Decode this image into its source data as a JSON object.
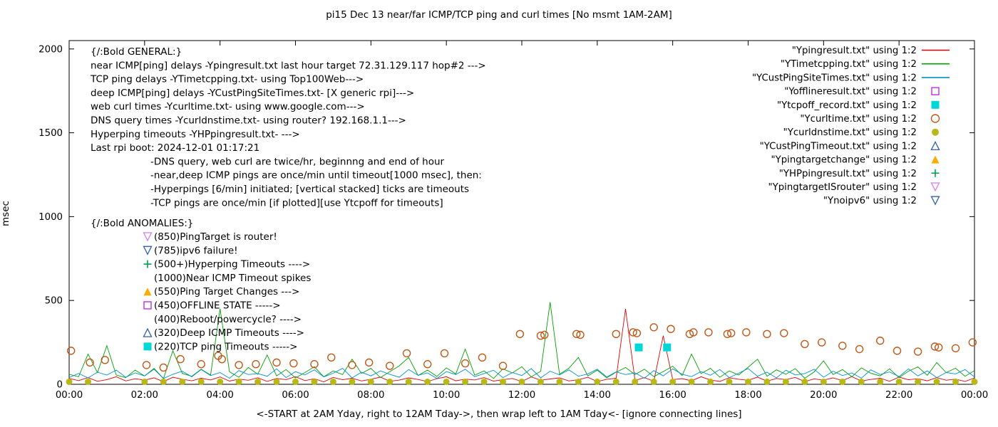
{
  "chart_data": {
    "type": "line",
    "title": "pi15 Dec 13  near/far ICMP/TCP ping and curl times [No msmt 1AM-2AM]",
    "xlabel": "<-START at 2AM Yday, right to 12AM Tday->, then wrap left to 1AM Tday<- [ignore connecting lines]",
    "ylabel": "msec",
    "xlim": [
      0,
      24
    ],
    "ylim": [
      0,
      2050
    ],
    "y_ticks": [
      0,
      500,
      1000,
      1500,
      2000
    ],
    "x_tick_hours": [
      0,
      2,
      4,
      6,
      8,
      10,
      12,
      14,
      16,
      18,
      20,
      22,
      24
    ],
    "x_tick_labels": [
      "00:00",
      "02:00",
      "04:00",
      "06:00",
      "08:00",
      "10:00",
      "12:00",
      "14:00",
      "16:00",
      "18:00",
      "20:00",
      "22:00",
      "00:00"
    ],
    "grid": false,
    "legend_position": "top-right",
    "series": [
      {
        "name": "Ypingresult.txt",
        "kind": "line",
        "color": "#dd0000",
        "x_step": 0.25,
        "values": [
          35,
          22,
          40,
          18,
          28,
          45,
          20,
          33,
          25,
          38,
          16,
          42,
          30,
          21,
          36,
          26,
          44,
          19,
          31,
          24,
          39,
          17,
          35,
          28,
          46,
          22,
          33,
          15,
          41,
          27,
          36,
          20,
          30,
          43,
          18,
          25,
          38,
          29,
          16,
          34,
          45,
          21,
          31,
          26,
          40,
          19,
          28,
          35,
          17,
          44,
          24,
          32,
          38,
          20,
          27,
          42,
          16,
          30,
          36,
          450,
          23,
          40,
          18,
          290,
          28,
          34,
          21,
          45,
          26,
          17,
          39,
          30,
          24,
          43,
          19,
          35,
          28,
          41,
          16,
          32,
          25,
          38,
          22,
          46,
          20,
          29,
          36,
          18,
          43,
          27,
          33,
          21,
          40,
          24,
          31,
          17,
          38
        ]
      },
      {
        "name": "YTimetcpping.txt",
        "kind": "line",
        "color": "#00a000",
        "x_step": 0.25,
        "values": [
          60,
          45,
          180,
          70,
          230,
          55,
          40,
          85,
          50,
          95,
          35,
          200,
          65,
          48,
          90,
          55,
          450,
          75,
          42,
          100,
          60,
          175,
          50,
          88,
          38,
          70,
          105,
          45,
          80,
          58,
          150,
          65,
          95,
          40,
          75,
          110,
          160,
          52,
          85,
          47,
          98,
          62,
          210,
          55,
          80,
          35,
          92,
          68,
          105,
          44,
          78,
          490,
          60,
          96,
          160,
          50,
          84,
          38,
          72,
          100,
          58,
          90,
          46,
          76,
          108,
          52,
          180,
          64,
          95,
          42,
          80,
          56,
          102,
          150,
          48,
          86,
          60,
          94,
          36,
          74,
          140,
          58,
          88,
          45,
          98,
          66,
          50,
          92,
          40,
          78,
          104,
          54,
          130,
          70,
          96,
          48,
          82
        ]
      },
      {
        "name": "YCustPingSiteTimes.txt",
        "kind": "line",
        "color": "#0090d0",
        "x_step": 0.25,
        "values": [
          40,
          65,
          38,
          72,
          55,
          85,
          42,
          68,
          50,
          90,
          35,
          60,
          78,
          45,
          88,
          52,
          70,
          36,
          82,
          58,
          64,
          48,
          92,
          40,
          75,
          56,
          86,
          44,
          66,
          95,
          38,
          72,
          50,
          80,
          60,
          42,
          88,
          54,
          68,
          35,
          76,
          58,
          90,
          46,
          64,
          84,
          40,
          70,
          52,
          94,
          38,
          78,
          56,
          86,
          48,
          62,
          90,
          44,
          74,
          58,
          68,
          36,
          82,
          50,
          92,
          60,
          46,
          76,
          54,
          88,
          40,
          66,
          94,
          48,
          72,
          38,
          84,
          56,
          64,
          90,
          42,
          78,
          52,
          68,
          36,
          86,
          58,
          74,
          46,
          92,
          50,
          80,
          40,
          70,
          62,
          88,
          44
        ]
      },
      {
        "name": "Ycurltime.txt",
        "kind": "scatter",
        "marker": "circle-open",
        "color": "#c05818",
        "points": [
          [
            0.05,
            200
          ],
          [
            0.55,
            130
          ],
          [
            0.95,
            145
          ],
          [
            2.05,
            115
          ],
          [
            2.5,
            100
          ],
          [
            2.95,
            150
          ],
          [
            3.5,
            120
          ],
          [
            3.95,
            170
          ],
          [
            4.05,
            150
          ],
          [
            4.5,
            115
          ],
          [
            4.95,
            120
          ],
          [
            5.5,
            130
          ],
          [
            5.95,
            125
          ],
          [
            6.5,
            120
          ],
          [
            6.95,
            160
          ],
          [
            7.5,
            115
          ],
          [
            7.95,
            130
          ],
          [
            8.5,
            110
          ],
          [
            8.95,
            185
          ],
          [
            9.5,
            120
          ],
          [
            9.95,
            185
          ],
          [
            10.5,
            125
          ],
          [
            10.95,
            160
          ],
          [
            11.5,
            110
          ],
          [
            11.95,
            300
          ],
          [
            12.5,
            290
          ],
          [
            12.6,
            295
          ],
          [
            13.45,
            300
          ],
          [
            13.55,
            295
          ],
          [
            14.5,
            300
          ],
          [
            14.95,
            310
          ],
          [
            15.05,
            305
          ],
          [
            15.5,
            340
          ],
          [
            15.95,
            330
          ],
          [
            16.45,
            300
          ],
          [
            16.55,
            310
          ],
          [
            16.95,
            310
          ],
          [
            17.45,
            300
          ],
          [
            17.55,
            305
          ],
          [
            17.95,
            310
          ],
          [
            18.5,
            300
          ],
          [
            18.95,
            305
          ],
          [
            19.5,
            240
          ],
          [
            19.95,
            250
          ],
          [
            20.5,
            230
          ],
          [
            20.95,
            210
          ],
          [
            21.5,
            260
          ],
          [
            21.95,
            200
          ],
          [
            22.5,
            195
          ],
          [
            22.95,
            225
          ],
          [
            23.05,
            220
          ],
          [
            23.5,
            215
          ],
          [
            23.95,
            250
          ]
        ]
      },
      {
        "name": "Ycurldnstime.txt",
        "kind": "scatter",
        "marker": "circle-filled",
        "color": "#b8b818",
        "y_const": 15,
        "xs": [
          0,
          0.5,
          2,
          2.5,
          3,
          3.5,
          4,
          4.5,
          5,
          5.5,
          6,
          6.5,
          7,
          7.5,
          8,
          8.5,
          9,
          9.5,
          10,
          10.5,
          11,
          11.5,
          12,
          12.5,
          13,
          13.5,
          14,
          14.5,
          15,
          15.5,
          16,
          16.5,
          17,
          17.5,
          18,
          18.5,
          19,
          19.5,
          20,
          20.5,
          21,
          21.5,
          22,
          22.5,
          23,
          23.5,
          24
        ]
      },
      {
        "name": "Ytcpoff_record.txt",
        "kind": "scatter",
        "marker": "square-filled",
        "color": "#00d8d8",
        "points": [
          [
            15.1,
            220
          ],
          [
            15.85,
            220
          ]
        ]
      }
    ]
  },
  "legend": [
    {
      "label": "\"Ypingresult.txt\" using 1:2",
      "sample": "line",
      "color": "#dd0000"
    },
    {
      "label": "\"YTimetcpping.txt\" using 1:2",
      "sample": "line",
      "color": "#00a000"
    },
    {
      "label": "\"YCustPingSiteTimes.txt\" using 1:2",
      "sample": "line",
      "color": "#0090d0"
    },
    {
      "label": "\"Yofflineresult.txt\" using 1:2",
      "sample": "square-open",
      "color": "#c030e0"
    },
    {
      "label": "\"Ytcpoff_record.txt\" using 1:2",
      "sample": "square-filled",
      "color": "#00d8d8"
    },
    {
      "label": "\"Ycurltime.txt\" using 1:2",
      "sample": "circle-open",
      "color": "#c05818"
    },
    {
      "label": "\"Ycurldnstime.txt\" using 1:2",
      "sample": "circle-filled",
      "color": "#b8b818"
    },
    {
      "label": "\"YCustPingTimeout.txt\" using 1:2",
      "sample": "triangle-up-open",
      "color": "#3060b0"
    },
    {
      "label": "\"Ypingtargetchange\" using 1:2",
      "sample": "triangle-up-filled",
      "color": "#ffaa00"
    },
    {
      "label": "\"YHPpingresult.txt\" using 1:2",
      "sample": "plus",
      "color": "#00a050"
    },
    {
      "label": "\"YpingtargetISrouter\" using 1:2",
      "sample": "triangle-down-open",
      "color": "#cc80e8"
    },
    {
      "label": "\"Ynoipv6\" using 1:2",
      "sample": "triangle-down-open",
      "color": "#3060b0"
    }
  ],
  "annotations": {
    "general": [
      {
        "text": "{/:Bold GENERAL:}",
        "indent": false
      },
      {
        "text": "near ICMP[ping] delays -Ypingresult.txt last hour target 72.31.129.117 hop#2 --->",
        "indent": false
      },
      {
        "text": "TCP ping delays -YTimetcpping.txt- using Top100Web--->",
        "indent": false
      },
      {
        "text": "deep ICMP[ping] delays -YCustPingSiteTimes.txt- [X generic rpi]--->",
        "indent": false
      },
      {
        "text": "web curl times -Ycurltime.txt- using www.google.com--->",
        "indent": false
      },
      {
        "text": "DNS query times -Ycurldnstime.txt- using router? 192.168.1.1--->",
        "indent": false
      },
      {
        "text": "Hyperping timeouts -YHPpingresult.txt- --->",
        "indent": false
      },
      {
        "text": "Last rpi boot: 2024-12-01 01:17:21",
        "indent": false
      },
      {
        "text": "-DNS query, web curl are twice/hr, beginnng and end of hour",
        "indent": true
      },
      {
        "text": "-near,deep ICMP pings are once/min until timeout[1000 msec], then:",
        "indent": true
      },
      {
        "text": "-Hyperpings [6/min] initiated; [vertical stacked] ticks are timeouts",
        "indent": true
      },
      {
        "text": "-TCP pings are once/min [if plotted][use Ytcpoff for timeouts]",
        "indent": true
      }
    ],
    "anomalies_header": "{/:Bold ANOMALIES:}",
    "anomalies": [
      {
        "marker": "triangle-down-open",
        "color": "#cc80e8",
        "text": "(850)PingTarget is router!"
      },
      {
        "marker": "triangle-down-open",
        "color": "#3060b0",
        "text": "(785)ipv6 failure!"
      },
      {
        "marker": "plus",
        "color": "#00a050",
        "text": "(500+)Hyperping Timeouts ---->"
      },
      {
        "marker": null,
        "color": null,
        "text": "(1000)Near ICMP Timeout spikes"
      },
      {
        "marker": "triangle-up-filled",
        "color": "#ffaa00",
        "text": "(550)Ping Target Changes --->"
      },
      {
        "marker": "square-open",
        "color": "#c030e0",
        "text": "(450)OFFLINE STATE ----->"
      },
      {
        "marker": null,
        "color": null,
        "text": "(400)Reboot/powercycle? ---->"
      },
      {
        "marker": "triangle-up-open",
        "color": "#3060b0",
        "text": "(320)Deep ICMP Timeouts ---->"
      },
      {
        "marker": "square-filled",
        "color": "#00d8d8",
        "text": "(220)TCP ping Timeouts ----->"
      }
    ]
  }
}
